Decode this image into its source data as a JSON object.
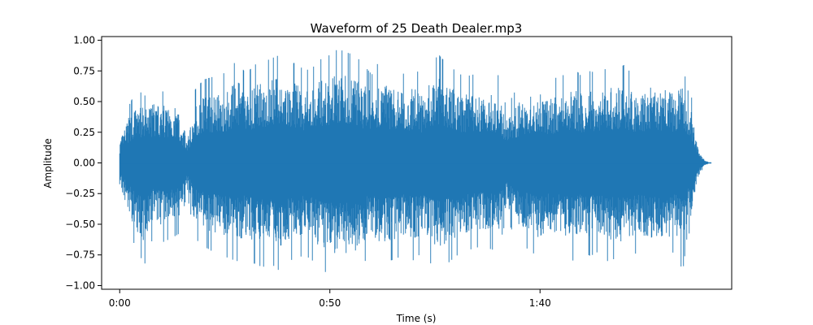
{
  "chart_data": {
    "type": "line",
    "title": "Waveform of 25 Death Dealer.mp3",
    "xlabel": "Time (s)",
    "ylabel": "Amplitude",
    "xlim": [
      -4.3,
      145.6
    ],
    "ylim": [
      -1.03,
      1.03
    ],
    "x_ticks": [
      {
        "value": 0,
        "label": "0:00"
      },
      {
        "value": 50,
        "label": "0:50"
      },
      {
        "value": 100,
        "label": "1:40"
      }
    ],
    "y_ticks": [
      {
        "value": 1.0,
        "label": "1.00"
      },
      {
        "value": 0.75,
        "label": "0.75"
      },
      {
        "value": 0.5,
        "label": "0.50"
      },
      {
        "value": 0.25,
        "label": "0.25"
      },
      {
        "value": 0.0,
        "label": "0.00"
      },
      {
        "value": -0.25,
        "label": "−0.25"
      },
      {
        "value": -0.5,
        "label": "−0.50"
      },
      {
        "value": -0.75,
        "label": "−0.75"
      },
      {
        "value": -1.0,
        "label": "−1.00"
      }
    ],
    "grid": false,
    "series": [
      {
        "color": "#1f77b4",
        "x": [
          0,
          2,
          4,
          6,
          8,
          10,
          12,
          14,
          16,
          18,
          20,
          22,
          24,
          26,
          28,
          30,
          32,
          34,
          36,
          38,
          40,
          42,
          44,
          46,
          48,
          50,
          52,
          54,
          56,
          58,
          60,
          62,
          64,
          66,
          68,
          70,
          72,
          74,
          76,
          78,
          80,
          82,
          84,
          86,
          88,
          90,
          92,
          94,
          96,
          98,
          100,
          102,
          104,
          106,
          108,
          110,
          112,
          114,
          116,
          118,
          120,
          122,
          124,
          126,
          128,
          130,
          132,
          134,
          135,
          136,
          137,
          138,
          139,
          140
        ],
        "env_max": [
          0.22,
          0.45,
          0.6,
          0.55,
          0.62,
          0.58,
          0.6,
          0.55,
          0.25,
          0.6,
          0.68,
          0.7,
          0.72,
          0.75,
          0.85,
          0.72,
          0.8,
          0.82,
          0.85,
          0.88,
          0.8,
          0.82,
          0.75,
          0.78,
          0.85,
          0.88,
          0.93,
          0.9,
          0.88,
          0.8,
          0.72,
          0.85,
          0.78,
          0.75,
          0.72,
          0.78,
          0.7,
          0.82,
          0.88,
          0.8,
          0.75,
          0.7,
          0.72,
          0.68,
          0.7,
          0.72,
          0.45,
          0.58,
          0.65,
          0.7,
          0.75,
          0.65,
          0.7,
          0.72,
          0.78,
          0.7,
          0.75,
          0.72,
          0.78,
          0.75,
          0.8,
          0.72,
          0.7,
          0.78,
          0.72,
          0.75,
          0.7,
          0.82,
          0.6,
          0.55,
          0.3,
          0.1,
          0.03,
          0.01
        ],
        "env_min": [
          -0.23,
          -0.5,
          -0.72,
          -0.82,
          -0.6,
          -0.65,
          -0.62,
          -0.58,
          -0.25,
          -0.62,
          -0.68,
          -0.72,
          -0.74,
          -0.78,
          -0.8,
          -0.75,
          -0.82,
          -0.85,
          -0.82,
          -0.88,
          -0.8,
          -0.78,
          -0.75,
          -0.8,
          -0.88,
          -0.9,
          -0.94,
          -0.92,
          -0.9,
          -0.82,
          -0.72,
          -0.86,
          -0.8,
          -0.78,
          -0.72,
          -0.8,
          -0.72,
          -0.82,
          -0.88,
          -0.82,
          -0.76,
          -0.72,
          -0.7,
          -0.68,
          -0.7,
          -0.72,
          -0.45,
          -0.6,
          -0.68,
          -0.72,
          -0.8,
          -0.68,
          -0.72,
          -0.75,
          -0.8,
          -0.72,
          -0.76,
          -0.72,
          -0.8,
          -0.78,
          -0.82,
          -0.75,
          -0.72,
          -0.8,
          -0.75,
          -0.78,
          -0.72,
          -0.88,
          -0.6,
          -0.55,
          -0.3,
          -0.1,
          -0.03,
          -0.01
        ]
      }
    ]
  }
}
